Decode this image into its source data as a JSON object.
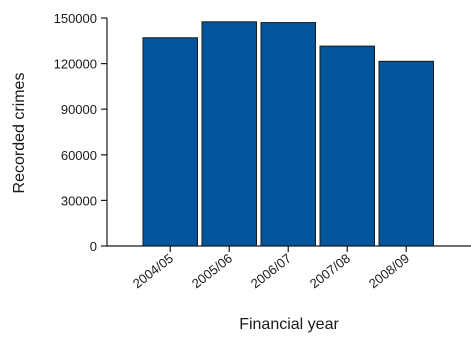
{
  "chart_data": {
    "type": "bar",
    "categories": [
      "2004/05",
      "2005/06",
      "2006/07",
      "2007/08",
      "2008/09"
    ],
    "values": [
      137000,
      147500,
      147000,
      131500,
      121500
    ],
    "xlabel": "Financial year",
    "ylabel": "Recorded crimes",
    "ylim": [
      0,
      150000
    ],
    "yticks": [
      0,
      30000,
      60000,
      90000,
      120000,
      150000
    ],
    "bar_color": "#02559a",
    "bar_edge_color": "#1a1a1a",
    "axis_color": "#1a1a1a",
    "grid": false,
    "legend": "none"
  }
}
